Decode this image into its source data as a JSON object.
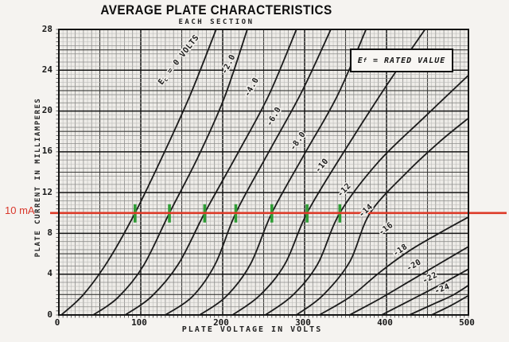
{
  "title": "AVERAGE PLATE CHARACTERISTICS",
  "subtitle": "EACH SECTION",
  "legend": {
    "symbol": "E",
    "subscript": "f",
    "rest": "= RATED VALUE"
  },
  "axes": {
    "x": {
      "label": "PLATE VOLTAGE IN VOLTS",
      "ticks": [
        0,
        100,
        200,
        300,
        400,
        500
      ],
      "range": [
        0,
        500
      ],
      "minor_step_volts": 5
    },
    "y": {
      "label": "PLATE CURRENT IN MILLIAMPERES",
      "ticks": [
        0,
        4,
        8,
        12,
        16,
        20,
        24,
        28
      ],
      "range": [
        0,
        28
      ],
      "minor_step_mA": 0.4
    }
  },
  "annotations": {
    "current_line_label": "10 mA",
    "current_line_mA": 10,
    "line_color": "#dd3a28",
    "marker_color": "#2f9d35",
    "marker_voltages_at_10mA": [
      93,
      135,
      178,
      216,
      260,
      303,
      343
    ]
  },
  "colors": {
    "paper": "#f5f3f0",
    "plot_bg": "#eeece8",
    "grid_fine": "#bdbdba",
    "grid_mid": "#8e8e8c",
    "grid_dark": "#3c3c3a",
    "grid_heavy": "#141414",
    "curve": "#1b1b1b"
  },
  "chart_data": {
    "type": "line",
    "title": "AVERAGE PLATE CHARACTERISTICS",
    "x_unit": "volts",
    "y_unit": "milliamperes",
    "xlim": [
      0,
      500
    ],
    "ylim": [
      0,
      28
    ],
    "grid": true,
    "series": [
      {
        "label": "Ec = 0 VOLTS",
        "grid_voltage": 0,
        "label_parts": {
          "pre": "E",
          "sub": "c",
          "post": " = 0 VOLTS"
        },
        "points": [
          [
            3,
            0
          ],
          [
            30,
            2
          ],
          [
            60,
            5.3
          ],
          [
            93,
            10
          ],
          [
            125,
            15.3
          ],
          [
            160,
            21.5
          ],
          [
            192,
            28
          ]
        ]
      },
      {
        "label": "-2.0",
        "grid_voltage": -2,
        "points": [
          [
            42,
            0
          ],
          [
            72,
            1.7
          ],
          [
            103,
            4.8
          ],
          [
            135,
            10
          ],
          [
            170,
            15.5
          ],
          [
            202,
            21.3
          ],
          [
            230,
            28
          ]
        ]
      },
      {
        "label": "-4.0",
        "grid_voltage": -4,
        "points": [
          [
            81,
            0
          ],
          [
            113,
            1.8
          ],
          [
            146,
            5
          ],
          [
            178,
            10
          ],
          [
            218,
            15.8
          ],
          [
            256,
            21.5
          ],
          [
            290,
            28
          ]
        ]
      },
      {
        "label": "-6.0",
        "grid_voltage": -6,
        "points": [
          [
            130,
            0
          ],
          [
            163,
            1.8
          ],
          [
            191,
            5
          ],
          [
            216,
            10
          ],
          [
            255,
            15.8
          ],
          [
            296,
            21.8
          ],
          [
            332,
            28
          ]
        ]
      },
      {
        "label": "-8.0",
        "grid_voltage": -8,
        "points": [
          [
            172,
            0
          ],
          [
            204,
            1.8
          ],
          [
            234,
            5
          ],
          [
            260,
            10
          ],
          [
            300,
            15.8
          ],
          [
            340,
            21.5
          ],
          [
            375,
            28
          ]
        ]
      },
      {
        "label": "-10",
        "grid_voltage": -10,
        "points": [
          [
            212,
            0
          ],
          [
            245,
            1.9
          ],
          [
            276,
            5
          ],
          [
            303,
            10
          ],
          [
            348,
            16
          ],
          [
            400,
            22.5
          ],
          [
            447,
            28
          ]
        ]
      },
      {
        "label": "-12",
        "grid_voltage": -12,
        "points": [
          [
            252,
            0
          ],
          [
            285,
            1.9
          ],
          [
            316,
            5
          ],
          [
            343,
            10
          ],
          [
            390,
            15
          ],
          [
            445,
            19.3
          ],
          [
            500,
            23.5
          ]
        ]
      },
      {
        "label": "-14",
        "grid_voltage": -14,
        "points": [
          [
            290,
            0
          ],
          [
            322,
            1.9
          ],
          [
            355,
            5.2
          ],
          [
            380,
            10
          ],
          [
            425,
            14
          ],
          [
            465,
            17
          ],
          [
            500,
            19.3
          ]
        ]
      },
      {
        "label": "-16",
        "grid_voltage": -16,
        "points": [
          [
            318,
            0
          ],
          [
            356,
            1.8
          ],
          [
            392,
            4.2
          ],
          [
            428,
            6.3
          ],
          [
            464,
            8
          ],
          [
            500,
            9.6
          ]
        ]
      },
      {
        "label": "-18",
        "grid_voltage": -18,
        "points": [
          [
            355,
            0
          ],
          [
            392,
            1.6
          ],
          [
            428,
            3.3
          ],
          [
            464,
            5
          ],
          [
            500,
            6.7
          ]
        ]
      },
      {
        "label": "-20",
        "grid_voltage": -20,
        "points": [
          [
            394,
            0
          ],
          [
            428,
            1.4
          ],
          [
            464,
            2.9
          ],
          [
            500,
            4.5
          ]
        ]
      },
      {
        "label": "-22",
        "grid_voltage": -22,
        "points": [
          [
            428,
            0
          ],
          [
            458,
            1.1
          ],
          [
            480,
            1.9
          ],
          [
            500,
            2.9
          ]
        ]
      },
      {
        "label": "-24",
        "grid_voltage": -24,
        "points": [
          [
            455,
            0
          ],
          [
            478,
            0.9
          ],
          [
            500,
            1.9
          ]
        ]
      }
    ],
    "curve_labels": [
      {
        "text": "Ec = 0 VOLTS",
        "x": 227,
        "y": 77,
        "rot": -52,
        "subscripted": true
      },
      {
        "text": "-2.0",
        "x": 290,
        "y": 82,
        "rot": -63
      },
      {
        "text": "-4.0",
        "x": 319,
        "y": 111,
        "rot": -60
      },
      {
        "text": "-6.0",
        "x": 347,
        "y": 148,
        "rot": -60
      },
      {
        "text": "-8.0",
        "x": 377,
        "y": 179,
        "rot": -55
      },
      {
        "text": "-10",
        "x": 407,
        "y": 210,
        "rot": -50
      },
      {
        "text": "-12",
        "x": 435,
        "y": 241,
        "rot": -46
      },
      {
        "text": "-14",
        "x": 462,
        "y": 267,
        "rot": -42
      },
      {
        "text": "-16",
        "x": 487,
        "y": 290,
        "rot": -38
      },
      {
        "text": "-18",
        "x": 505,
        "y": 317,
        "rot": -35
      },
      {
        "text": "-20",
        "x": 522,
        "y": 336,
        "rot": -31
      },
      {
        "text": "-22",
        "x": 542,
        "y": 352,
        "rot": -27
      },
      {
        "text": "-24",
        "x": 557,
        "y": 366,
        "rot": -21
      }
    ]
  }
}
